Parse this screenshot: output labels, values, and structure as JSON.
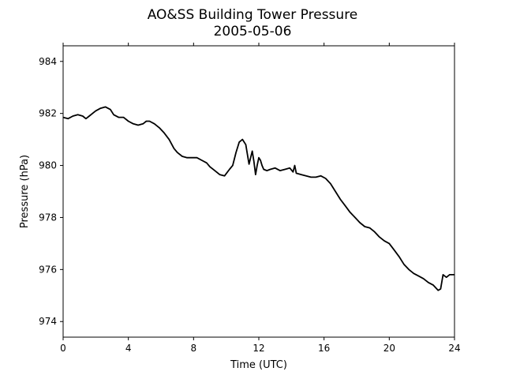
{
  "chart_data": {
    "type": "line",
    "title": "AO&SS Building Tower Pressure",
    "subtitle": "2005-05-06",
    "xlabel": "Time (UTC)",
    "ylabel": "Pressure (hPa)",
    "xlim": [
      0,
      24
    ],
    "ylim": [
      973.4,
      984.6
    ],
    "xticks": [
      0,
      4,
      8,
      12,
      16,
      20,
      24
    ],
    "xtick_labels": [
      "0",
      "4",
      "8",
      "12",
      "16",
      "20",
      "24"
    ],
    "yticks": [
      974,
      976,
      978,
      980,
      982,
      984
    ],
    "ytick_labels": [
      "974",
      "976",
      "978",
      "980",
      "982",
      "984"
    ],
    "grid": false,
    "line_color": "#000000",
    "series": [
      {
        "x": [
          0,
          0.3,
          0.6,
          0.9,
          1.2,
          1.4,
          1.6,
          1.8,
          2.0,
          2.3,
          2.6,
          2.9,
          3.1,
          3.4,
          3.7,
          4.0,
          4.3,
          4.6,
          4.9,
          5.1,
          5.3,
          5.6,
          5.9,
          6.2,
          6.5,
          6.8,
          7.0,
          7.3,
          7.6,
          7.9,
          8.2,
          8.5,
          8.8,
          9.0,
          9.3,
          9.6,
          9.9,
          10.2,
          10.4,
          10.6,
          10.8,
          11.0,
          11.2,
          11.4,
          11.6,
          11.7,
          11.8,
          11.9,
          12.0,
          12.1,
          12.2,
          12.3,
          12.5,
          12.7,
          13.0,
          13.3,
          13.6,
          13.9,
          14.1,
          14.2,
          14.3,
          14.6,
          14.9,
          15.2,
          15.5,
          15.8,
          16.1,
          16.4,
          16.7,
          17.0,
          17.3,
          17.6,
          17.9,
          18.2,
          18.5,
          18.8,
          19.1,
          19.4,
          19.7,
          20.0,
          20.3,
          20.6,
          20.9,
          21.2,
          21.5,
          21.8,
          22.1,
          22.4,
          22.7,
          23.0,
          23.15,
          23.3,
          23.5,
          23.7,
          24.0
        ],
        "y": [
          981.85,
          981.8,
          981.9,
          981.95,
          981.9,
          981.8,
          981.9,
          982.0,
          982.1,
          982.2,
          982.25,
          982.15,
          981.95,
          981.85,
          981.85,
          981.7,
          981.6,
          981.55,
          981.6,
          981.7,
          981.7,
          981.6,
          981.45,
          981.25,
          981.0,
          980.65,
          980.5,
          980.35,
          980.3,
          980.3,
          980.3,
          980.2,
          980.1,
          979.95,
          979.8,
          979.65,
          979.6,
          979.85,
          980.0,
          980.5,
          980.9,
          981.0,
          980.8,
          980.05,
          980.55,
          980.15,
          979.65,
          980.0,
          980.3,
          980.2,
          980.0,
          979.85,
          979.8,
          979.85,
          979.9,
          979.8,
          979.85,
          979.9,
          979.75,
          980.0,
          979.7,
          979.65,
          979.6,
          979.55,
          979.55,
          979.6,
          979.5,
          979.3,
          979.0,
          978.7,
          978.45,
          978.2,
          978.0,
          977.8,
          977.65,
          977.6,
          977.45,
          977.25,
          977.1,
          977.0,
          976.75,
          976.5,
          976.2,
          976.0,
          975.85,
          975.75,
          975.65,
          975.5,
          975.4,
          975.2,
          975.25,
          975.8,
          975.7,
          975.8,
          975.8
        ]
      }
    ]
  }
}
